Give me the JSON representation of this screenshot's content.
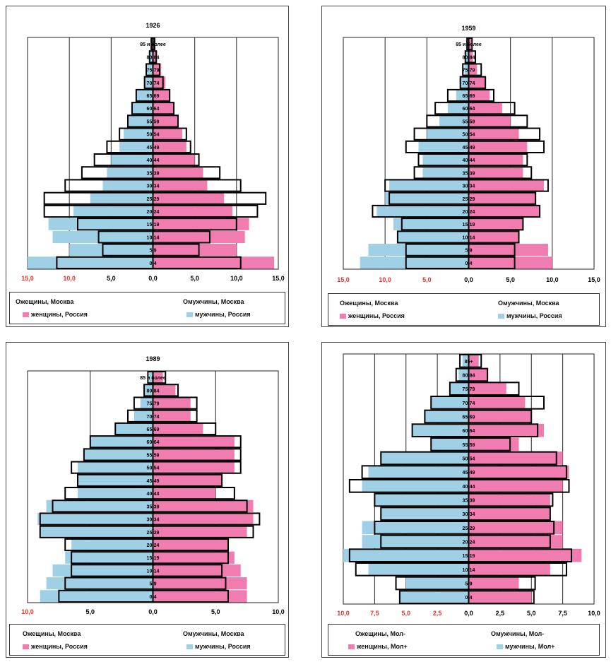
{
  "colors": {
    "female_russia": "#f07cb0",
    "male_russia": "#9fd0e6",
    "moscow_outline": "#000000",
    "axis_label_red": "#e8302a",
    "grid": "#000000"
  },
  "chart_data": [
    {
      "type": "population-pyramid",
      "title": "1926",
      "age_groups": [
        "0-4",
        "5-9",
        "10-14",
        "15-19",
        "20-24",
        "25-29",
        "30-34",
        "35-39",
        "40-44",
        "45-49",
        "50-54",
        "55-59",
        "60-64",
        "65-69",
        "70-74",
        "75-79",
        "80-84",
        "85 и более"
      ],
      "x_tick_labels": [
        "15,0",
        "10,0",
        "5,0",
        "0,0",
        "5,0",
        "10,0",
        "15,0"
      ],
      "xlim": [
        -15,
        15
      ],
      "red_ticks": [
        "15,0",
        "10,0"
      ],
      "series": [
        {
          "name": "женщины, Москва",
          "side": "left",
          "style": "outline",
          "values": [
            11.5,
            6.0,
            6.5,
            9.0,
            13.0,
            13.0,
            10.5,
            8.5,
            7.0,
            5.5,
            4.0,
            3.0,
            2.5,
            2.0,
            1.0,
            0.8,
            0.4,
            0.2
          ]
        },
        {
          "name": "мужчины, Москва",
          "side": "right",
          "style": "outline",
          "values": [
            10.5,
            5.5,
            6.8,
            10.0,
            12.5,
            13.5,
            10.5,
            8.0,
            5.5,
            4.5,
            4.0,
            3.0,
            2.5,
            2.0,
            1.2,
            0.8,
            0.4,
            0.2
          ]
        },
        {
          "name": "женщины, Россия",
          "side": "right",
          "style": "fill",
          "color": "#f07cb0",
          "values": [
            14.5,
            10.0,
            11.0,
            11.5,
            9.5,
            8.5,
            6.5,
            6.0,
            5.0,
            4.0,
            3.5,
            3.0,
            2.5,
            2.0,
            1.5,
            1.0,
            0.5,
            0.3
          ]
        },
        {
          "name": "мужчины, Россия",
          "side": "left",
          "style": "fill",
          "color": "#9fd0e6",
          "values": [
            15.0,
            10.0,
            12.0,
            12.5,
            9.5,
            7.5,
            6.0,
            5.5,
            5.0,
            4.0,
            3.5,
            3.0,
            2.5,
            2.0,
            1.0,
            0.7,
            0.3,
            0.2
          ]
        }
      ],
      "legend": [
        "Ожещины, Москва",
        "Омужчины, Москва",
        "женщины, Россия",
        "мужчины, Россия"
      ]
    },
    {
      "type": "population-pyramid",
      "title": "1959",
      "age_groups": [
        "0-4",
        "5-9",
        "10-14",
        "15-19",
        "20-24",
        "25-29",
        "30-34",
        "35-39",
        "40-44",
        "45-49",
        "50-54",
        "55-59",
        "60-64",
        "65-69",
        "70-74",
        "75-79",
        "80-84",
        "85 и более"
      ],
      "x_tick_labels": [
        "15,0",
        "10,0",
        "5,0",
        "0,0",
        "5,0",
        "10,0",
        "15,0"
      ],
      "xlim": [
        -15,
        15
      ],
      "red_ticks": [
        "15,0",
        "10,0",
        "5,0"
      ],
      "series": [
        {
          "name": "Ожещины, Москва",
          "side": "left",
          "style": "outline",
          "values": [
            7.5,
            7.5,
            8.5,
            8.0,
            11.5,
            9.5,
            10.0,
            6.5,
            6.0,
            7.5,
            6.5,
            5.0,
            4.0,
            2.5,
            1.0,
            0.7,
            0.4,
            0.2
          ]
        },
        {
          "name": "Омужчины, Москва",
          "side": "right",
          "style": "outline",
          "values": [
            5.5,
            5.5,
            6.0,
            6.5,
            8.5,
            8.0,
            9.5,
            7.5,
            7.0,
            9.0,
            8.5,
            7.0,
            5.5,
            3.0,
            2.0,
            1.5,
            0.8,
            0.4
          ]
        },
        {
          "name": "женщины, Россия",
          "side": "right",
          "style": "fill",
          "color": "#f07cb0",
          "values": [
            10.0,
            9.5,
            6.0,
            6.5,
            8.5,
            8.0,
            9.0,
            6.5,
            6.5,
            7.0,
            6.0,
            5.0,
            4.0,
            2.5,
            2.0,
            1.0,
            0.5,
            0.3
          ]
        },
        {
          "name": "мужчины, Россия",
          "side": "left",
          "style": "fill",
          "color": "#9fd0e6",
          "values": [
            13.0,
            12.0,
            8.5,
            9.0,
            11.0,
            10.0,
            9.5,
            5.5,
            5.5,
            6.0,
            5.0,
            3.5,
            2.5,
            1.5,
            1.0,
            0.5,
            0.3,
            0.2
          ]
        }
      ],
      "legend": [
        "Ожещины, Москва",
        "Омужчины, Москва",
        "женщины, Россия",
        "мужчины, Россия"
      ]
    },
    {
      "type": "population-pyramid",
      "title": "1989",
      "age_groups": [
        "0-4",
        "5-9",
        "10-14",
        "15-19",
        "20-24",
        "25-29",
        "30-34",
        "35-39",
        "40-44",
        "45-49",
        "50-54",
        "55-59",
        "60-64",
        "65-69",
        "70-74",
        "75-79",
        "80-84",
        "85 и более"
      ],
      "x_tick_labels": [
        "10,0",
        "5,0",
        "0,0",
        "5,0",
        "10,0"
      ],
      "xlim": [
        -10,
        10
      ],
      "red_ticks": [
        "10,0"
      ],
      "series": [
        {
          "name": "Ожещины, Москва",
          "side": "left",
          "style": "outline",
          "values": [
            7.5,
            7.0,
            6.5,
            6.5,
            7.0,
            9.0,
            9.0,
            8.0,
            7.0,
            6.0,
            6.5,
            5.5,
            5.0,
            3.0,
            2.0,
            1.5,
            0.7,
            0.4
          ]
        },
        {
          "name": "Омужчины, Москва",
          "side": "right",
          "style": "outline",
          "values": [
            6.0,
            5.8,
            5.5,
            6.0,
            6.0,
            8.0,
            8.5,
            7.5,
            6.5,
            5.5,
            7.0,
            7.0,
            7.0,
            5.0,
            3.5,
            3.5,
            2.0,
            1.0
          ]
        },
        {
          "name": "женщины, Россия",
          "side": "right",
          "style": "fill",
          "color": "#f07cb0",
          "values": [
            7.5,
            7.5,
            7.0,
            6.5,
            6.0,
            7.5,
            8.0,
            8.0,
            5.0,
            5.5,
            6.5,
            6.5,
            6.5,
            4.0,
            3.0,
            3.0,
            1.8,
            0.8
          ]
        },
        {
          "name": "мужчины, Россия",
          "side": "left",
          "style": "fill",
          "color": "#9fd0e6",
          "values": [
            9.0,
            8.5,
            8.0,
            7.0,
            6.5,
            9.0,
            9.2,
            8.5,
            6.0,
            6.0,
            6.0,
            5.5,
            5.0,
            3.0,
            1.5,
            1.0,
            0.7,
            0.3
          ]
        }
      ],
      "legend": [
        "Ожещины, Москва",
        "Омужчины, Москва",
        "женщины, Россия",
        "мужчины, Россия"
      ]
    },
    {
      "type": "population-pyramid",
      "title": "",
      "age_groups": [
        "0-4",
        "5-9",
        "10-14",
        "15-19",
        "20-24",
        "25-29",
        "30-34",
        "35-39",
        "40-44",
        "45-49",
        "50-54",
        "55-59",
        "60-64",
        "65-69",
        "70-74",
        "75-79",
        "80-84",
        "85+"
      ],
      "x_tick_labels": [
        "10,0",
        "7,5",
        "5,0",
        "2,5",
        "0,0",
        "2,5",
        "5,0",
        "7,5",
        "10,0"
      ],
      "xlim": [
        -10,
        10
      ],
      "red_ticks": [
        "10,0",
        "7,5",
        "5,0",
        "2,5"
      ],
      "series": [
        {
          "name": "Ожещины, Мол-",
          "side": "left",
          "style": "outline",
          "values": [
            5.5,
            5.8,
            9.0,
            9.5,
            7.0,
            7.5,
            7.0,
            7.5,
            9.5,
            8.5,
            7.0,
            3.0,
            4.5,
            3.5,
            3.0,
            1.5,
            1.0,
            0.7
          ]
        },
        {
          "name": "Омужчины, Мол-",
          "side": "right",
          "style": "outline",
          "values": [
            5.2,
            5.3,
            7.8,
            8.2,
            6.5,
            6.8,
            6.5,
            6.7,
            8.0,
            7.8,
            7.0,
            3.3,
            5.5,
            5.0,
            6.0,
            4.0,
            1.5,
            1.0
          ]
        },
        {
          "name": "женщины, Мол+",
          "side": "right",
          "style": "fill",
          "color": "#f07cb0",
          "values": [
            5.0,
            4.0,
            6.5,
            9.0,
            7.5,
            7.5,
            6.5,
            6.5,
            7.5,
            8.0,
            7.5,
            4.0,
            6.0,
            5.0,
            4.5,
            3.0,
            1.5,
            0.8
          ]
        },
        {
          "name": "мужчины, Мол+",
          "side": "left",
          "style": "fill",
          "color": "#9fd0e6",
          "values": [
            5.5,
            5.0,
            8.0,
            10.0,
            8.5,
            8.5,
            7.0,
            7.5,
            8.5,
            8.0,
            7.0,
            3.0,
            4.5,
            3.5,
            3.0,
            1.5,
            0.8,
            0.5
          ]
        }
      ],
      "legend": [
        "Ожещины, Мол-",
        "Омужчины, Мол-",
        "женщины, Мол+",
        "мужчины, Мол+"
      ]
    }
  ]
}
